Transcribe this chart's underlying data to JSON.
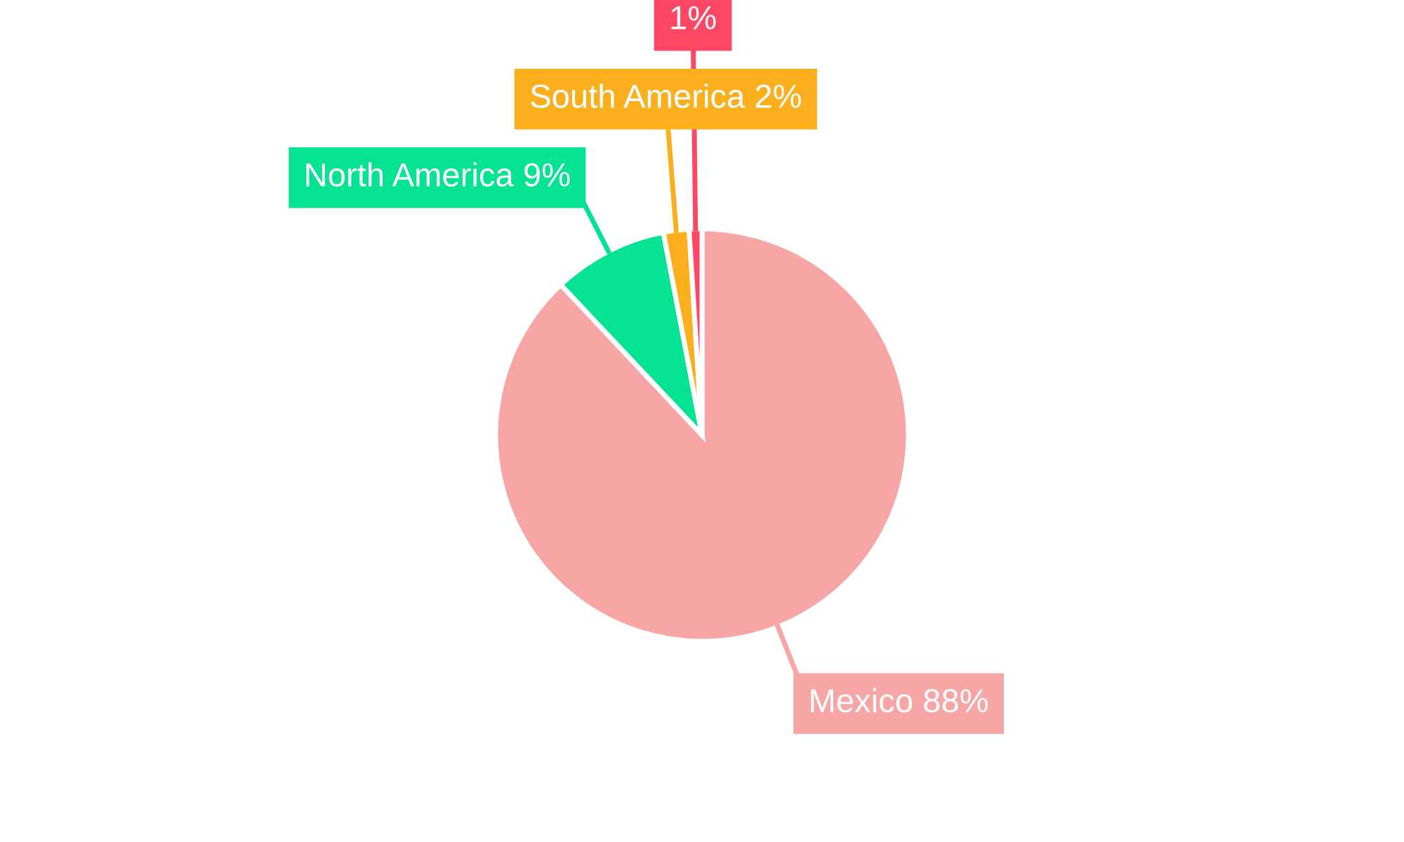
{
  "chart_data": {
    "type": "pie",
    "categories": [
      "Mexico",
      "North America",
      "South America",
      null
    ],
    "values": [
      88,
      9,
      2,
      1
    ],
    "value_labels": [
      "88%",
      "9%",
      "2%",
      "1%"
    ],
    "colors": [
      "#f8a5a6",
      "#04e294",
      "#fcaf1c",
      "#ff4765"
    ],
    "legend": false
  }
}
